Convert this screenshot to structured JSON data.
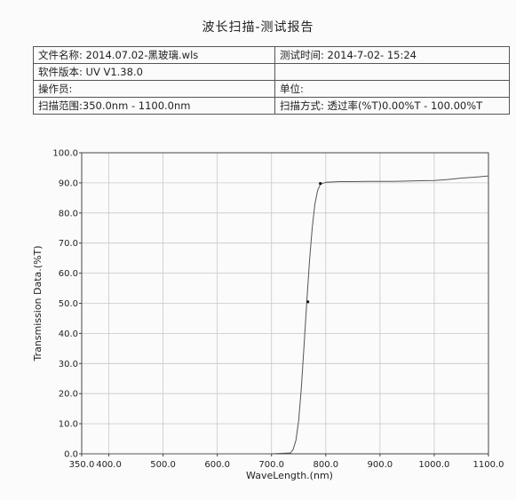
{
  "report": {
    "title": "波长扫描-测试报告",
    "rows": [
      {
        "left": "文件名称: 2014.07.02-黑玻璃.wls",
        "right": "测试时间: 2014-7-02- 15:24"
      },
      {
        "left": "软件版本: UV V1.38.0",
        "right": ""
      },
      {
        "left": "操作员:",
        "right": "单位:"
      },
      {
        "left": "扫描范围:350.0nm - 1100.0nm",
        "right": "扫描方式: 透过率(%T)0.00%T - 100.00%T"
      }
    ]
  },
  "chart_data": {
    "type": "line",
    "title": "",
    "xlabel": "WaveLength.(nm)",
    "ylabel": "Transmission Data.(%T)",
    "xlim": [
      350,
      1100
    ],
    "ylim": [
      0,
      100
    ],
    "xticks": [
      "350.0",
      "400.0",
      "500.0",
      "600.0",
      "700.0",
      "800.0",
      "900.0",
      "1000.0",
      "1100.0"
    ],
    "xtick_values": [
      350,
      400,
      500,
      600,
      700,
      800,
      900,
      1000,
      1100
    ],
    "yticks": [
      "0.0",
      "10.0",
      "20.0",
      "30.0",
      "40.0",
      "50.0",
      "60.0",
      "70.0",
      "80.0",
      "90.0",
      "100.0"
    ],
    "ytick_values": [
      0,
      10,
      20,
      30,
      40,
      50,
      60,
      70,
      80,
      90,
      100
    ],
    "grid": true,
    "line_color": "#555555",
    "series": [
      {
        "x": [
          350,
          600,
          700,
          735,
          740,
          745,
          750,
          755,
          760,
          765,
          770,
          775,
          780,
          785,
          790,
          800,
          825,
          850,
          875,
          900,
          925,
          950,
          975,
          1000,
          1025,
          1050,
          1075,
          1100
        ],
        "y": [
          0.0,
          0.0,
          0.0,
          0.3,
          1.5,
          4.5,
          11.0,
          22.0,
          36.0,
          50.5,
          64.0,
          75.0,
          83.0,
          87.5,
          89.5,
          90.2,
          90.4,
          90.4,
          90.5,
          90.5,
          90.5,
          90.6,
          90.7,
          90.8,
          91.1,
          91.6,
          91.9,
          92.3
        ]
      }
    ],
    "markers": [
      {
        "x": 767,
        "y": 50.5
      },
      {
        "x": 790,
        "y": 89.8
      }
    ]
  }
}
